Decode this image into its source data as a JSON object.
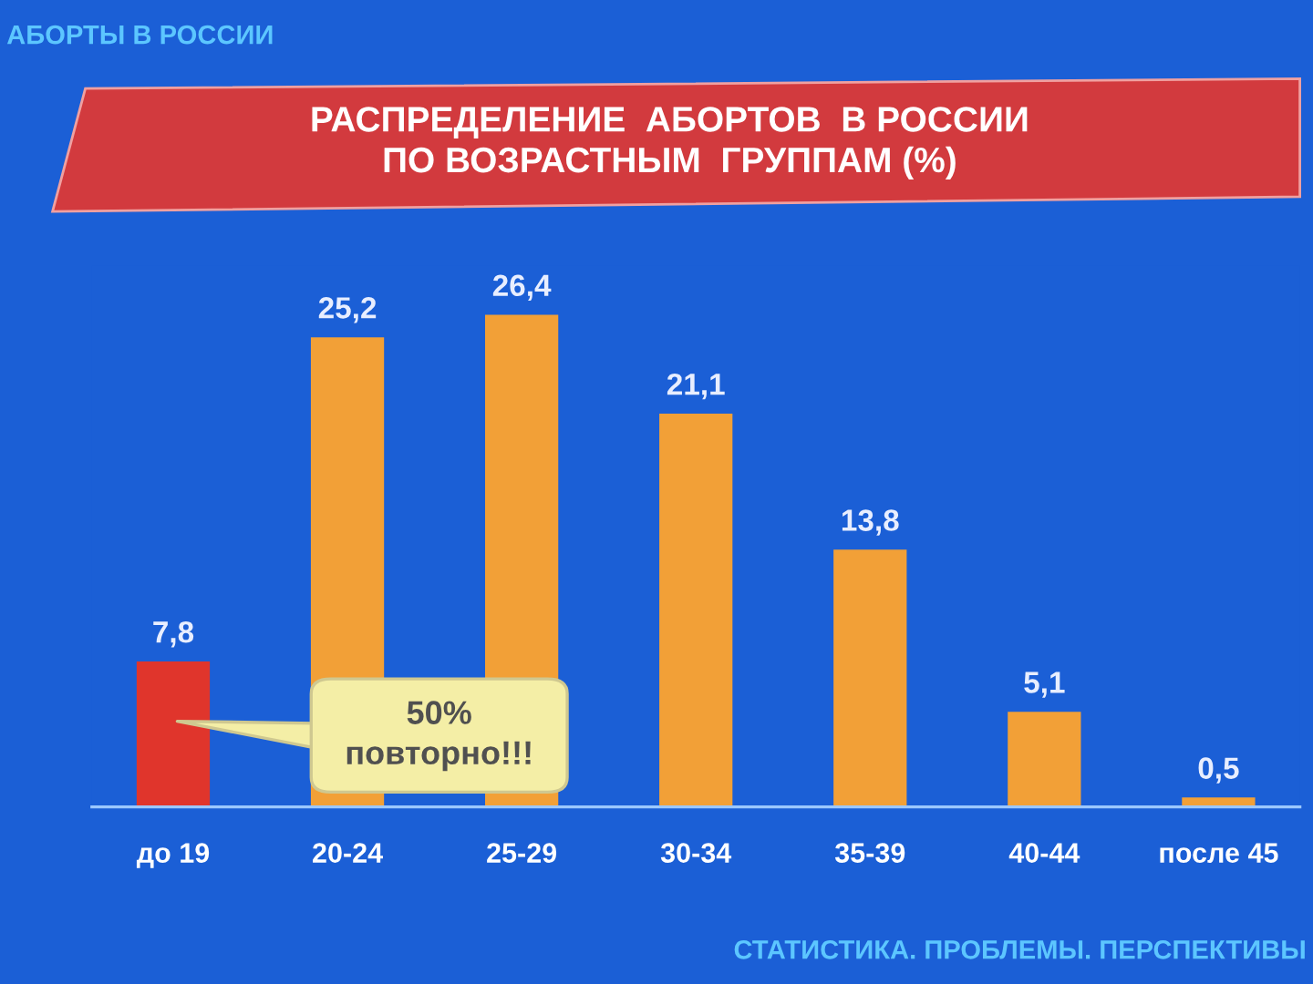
{
  "chart_data": {
    "type": "bar",
    "title": "РАСПРЕДЕЛЕНИЕ  АБОРТОВ  В РОССИИ\nПО ВОЗРАСТНЫМ  ГРУППАМ (%)",
    "categories": [
      "до 19",
      "20-24",
      "25-29",
      "30-34",
      "35-39",
      "40-44",
      "после 45"
    ],
    "values": [
      7.8,
      25.2,
      26.4,
      21.1,
      13.8,
      5.1,
      0.5
    ],
    "colors": [
      "#e0352c",
      "#f2a037",
      "#f2a037",
      "#f2a037",
      "#f2a037",
      "#f2a037",
      "#f2a037"
    ],
    "value_labels": [
      "7,8",
      "25,2",
      "26,4",
      "21,1",
      "13,8",
      "5,1",
      "0,5"
    ],
    "annotations": [
      "АБОРТЫ В РОССИИ",
      "50%\nповторно!!!",
      "СТАТИСТИКА. ПРОБЛЕМЫ. ПЕРСПЕКТИВЫ"
    ],
    "grid": false,
    "legend": false,
    "tick_labels": "x"
  }
}
